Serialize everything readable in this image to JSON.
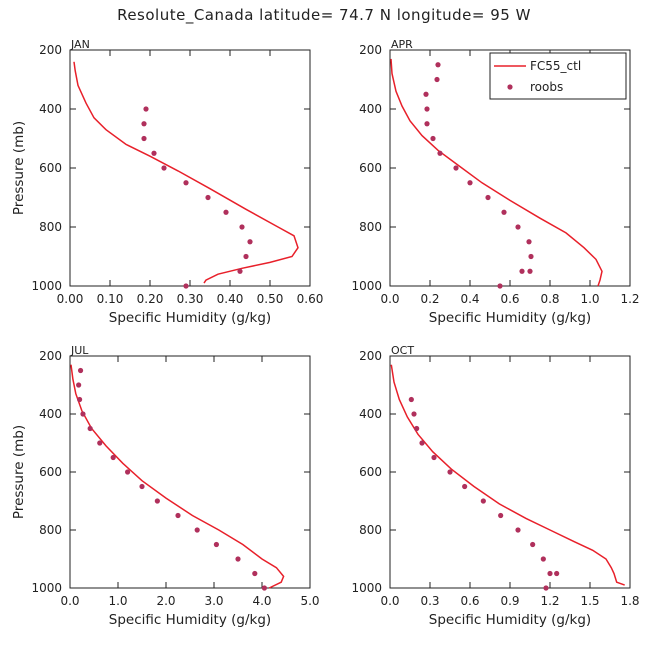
{
  "title": "Resolute_Canada  latitude= 74.7 N longitude= 95 W",
  "colors": {
    "model": "#e8202a",
    "obs": "#b0305c",
    "axis": "#222222"
  },
  "legend": {
    "model": "FC55_ctl",
    "obs": "roobs"
  },
  "chart_data": [
    {
      "type": "line",
      "panel": "JAN",
      "xlabel": "Specific Humidity (g/kg)",
      "ylabel": "Pressure (mb)",
      "xlim": [
        0,
        0.6
      ],
      "xticks": [
        0,
        0.1,
        0.2,
        0.3,
        0.4,
        0.5,
        0.6
      ],
      "xtick_labels": [
        "0.00",
        "0.10",
        "0.20",
        "0.30",
        "0.40",
        "0.50",
        "0.60"
      ],
      "ylim": [
        1000,
        200
      ],
      "yticks": [
        200,
        400,
        600,
        800,
        1000
      ],
      "series": [
        {
          "name": "FC55_ctl",
          "kind": "line",
          "x": [
            0.01,
            0.013,
            0.02,
            0.04,
            0.06,
            0.09,
            0.14,
            0.2,
            0.27,
            0.35,
            0.44,
            0.52,
            0.56,
            0.57,
            0.555,
            0.5,
            0.43,
            0.37,
            0.34,
            0.335
          ],
          "y": [
            240,
            270,
            320,
            380,
            430,
            470,
            520,
            560,
            610,
            670,
            740,
            800,
            830,
            870,
            900,
            920,
            940,
            960,
            980,
            990
          ]
        },
        {
          "name": "roobs",
          "kind": "scatter",
          "x": [
            0.19,
            0.185,
            0.185,
            0.21,
            0.235,
            0.29,
            0.345,
            0.39,
            0.43,
            0.45,
            0.44,
            0.425,
            0.29
          ],
          "y": [
            400,
            450,
            500,
            550,
            600,
            650,
            700,
            750,
            800,
            850,
            900,
            950,
            1000
          ]
        }
      ]
    },
    {
      "type": "line",
      "panel": "APR",
      "xlabel": "Specific Humidity (g/kg)",
      "ylabel": "",
      "xlim": [
        0,
        1.2
      ],
      "xticks": [
        0,
        0.2,
        0.4,
        0.6,
        0.8,
        1.0,
        1.2
      ],
      "xtick_labels": [
        "0.0",
        "0.2",
        "0.4",
        "0.6",
        "0.8",
        "1.0",
        "1.2"
      ],
      "ylim": [
        1000,
        200
      ],
      "yticks": [
        200,
        400,
        600,
        800,
        1000
      ],
      "series": [
        {
          "name": "FC55_ctl",
          "kind": "line",
          "x": [
            0.005,
            0.01,
            0.03,
            0.06,
            0.1,
            0.16,
            0.24,
            0.34,
            0.46,
            0.6,
            0.75,
            0.88,
            0.97,
            1.03,
            1.06,
            1.05,
            1.04
          ],
          "y": [
            230,
            280,
            340,
            390,
            440,
            490,
            540,
            590,
            650,
            710,
            770,
            820,
            870,
            910,
            950,
            980,
            1000
          ]
        },
        {
          "name": "roobs",
          "kind": "scatter",
          "x": [
            0.24,
            0.235,
            0.18,
            0.185,
            0.185,
            0.215,
            0.25,
            0.33,
            0.4,
            0.49,
            0.57,
            0.64,
            0.695,
            0.705,
            0.7,
            0.66,
            0.55
          ],
          "y": [
            250,
            300,
            350,
            400,
            450,
            500,
            550,
            600,
            650,
            700,
            750,
            800,
            850,
            900,
            950,
            950,
            1000
          ]
        }
      ]
    },
    {
      "type": "line",
      "panel": "JUL",
      "xlabel": "Specific Humidity (g/kg)",
      "ylabel": "Pressure (mb)",
      "xlim": [
        0,
        5
      ],
      "xticks": [
        0,
        1,
        2,
        3,
        4,
        5
      ],
      "xtick_labels": [
        "0.0",
        "1.0",
        "2.0",
        "3.0",
        "4.0",
        "5.0"
      ],
      "ylim": [
        1000,
        200
      ],
      "yticks": [
        200,
        400,
        600,
        800,
        1000
      ],
      "series": [
        {
          "name": "FC55_ctl",
          "kind": "line",
          "x": [
            0.02,
            0.06,
            0.12,
            0.25,
            0.45,
            0.75,
            1.1,
            1.5,
            2.0,
            2.55,
            3.1,
            3.6,
            4.0,
            4.3,
            4.45,
            4.4,
            4.15
          ],
          "y": [
            230,
            280,
            330,
            390,
            450,
            510,
            570,
            630,
            690,
            750,
            800,
            850,
            900,
            930,
            960,
            980,
            1000
          ]
        },
        {
          "name": "roobs",
          "kind": "scatter",
          "x": [
            0.22,
            0.18,
            0.2,
            0.27,
            0.42,
            0.62,
            0.9,
            1.2,
            1.5,
            1.82,
            2.25,
            2.65,
            3.05,
            3.5,
            3.85,
            4.05
          ],
          "y": [
            250,
            300,
            350,
            400,
            450,
            500,
            550,
            600,
            650,
            700,
            750,
            800,
            850,
            900,
            950,
            1000
          ]
        }
      ]
    },
    {
      "type": "line",
      "panel": "OCT",
      "xlabel": "Specific Humidity (g/kg)",
      "ylabel": "",
      "xlim": [
        0,
        1.8
      ],
      "xticks": [
        0,
        0.3,
        0.6,
        0.9,
        1.2,
        1.5,
        1.8
      ],
      "xtick_labels": [
        "0.0",
        "0.3",
        "0.6",
        "0.9",
        "1.2",
        "1.5",
        "1.8"
      ],
      "ylim": [
        1000,
        200
      ],
      "yticks": [
        200,
        400,
        600,
        800,
        1000
      ],
      "series": [
        {
          "name": "FC55_ctl",
          "kind": "line",
          "x": [
            0.01,
            0.03,
            0.07,
            0.13,
            0.21,
            0.32,
            0.46,
            0.63,
            0.82,
            1.02,
            1.2,
            1.38,
            1.52,
            1.62,
            1.66,
            1.68,
            1.7,
            1.76
          ],
          "y": [
            230,
            290,
            350,
            410,
            470,
            530,
            590,
            650,
            710,
            760,
            800,
            840,
            870,
            900,
            930,
            950,
            980,
            990
          ]
        },
        {
          "name": "roobs",
          "kind": "scatter",
          "x": [
            0.16,
            0.18,
            0.2,
            0.24,
            0.33,
            0.45,
            0.56,
            0.7,
            0.83,
            0.96,
            1.07,
            1.15,
            1.2,
            1.25,
            1.17
          ],
          "y": [
            350,
            400,
            450,
            500,
            550,
            600,
            650,
            700,
            750,
            800,
            850,
            900,
            950,
            950,
            1000
          ]
        }
      ]
    }
  ]
}
